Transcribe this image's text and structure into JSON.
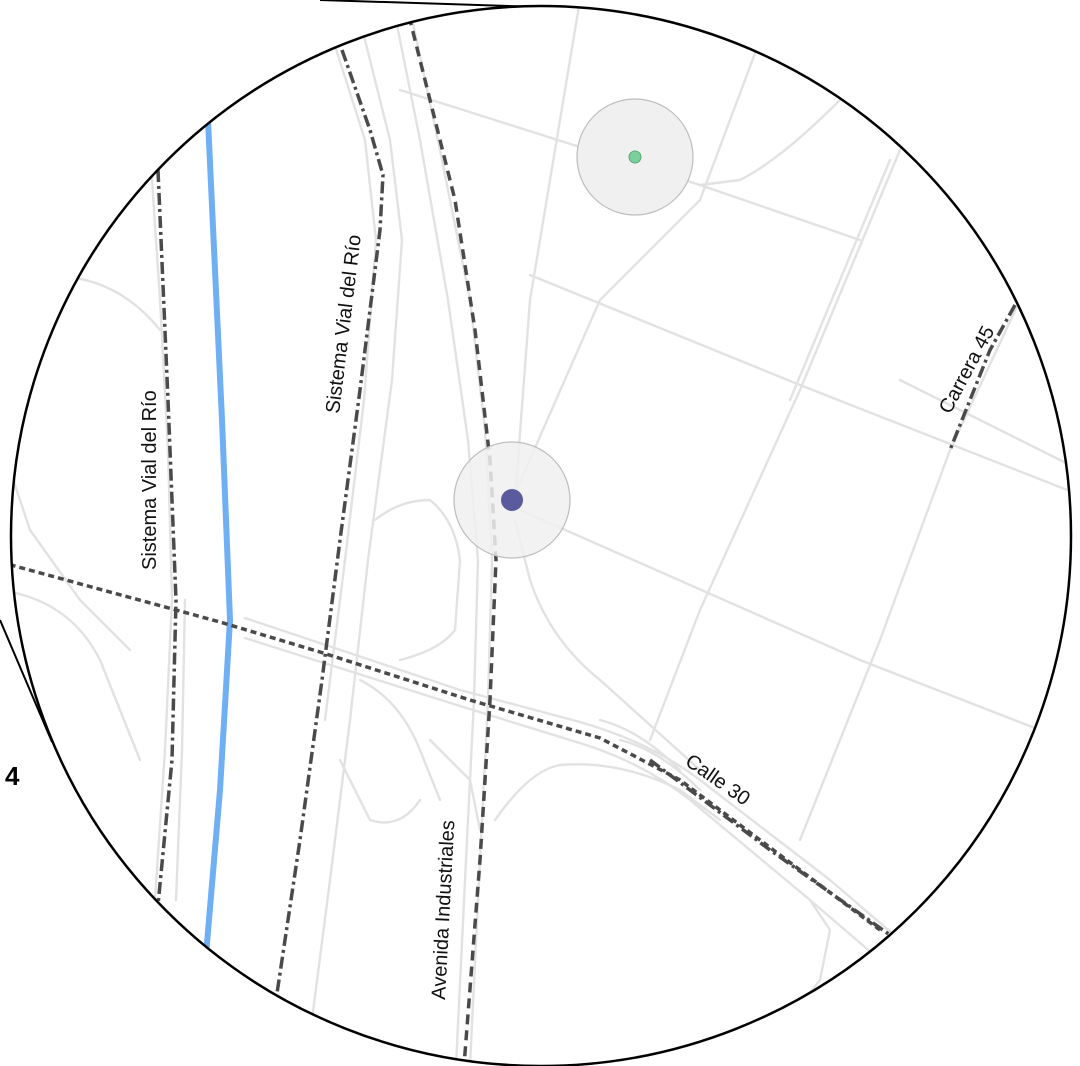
{
  "panel": {
    "number": "4"
  },
  "street_labels": {
    "sistema_vial_left": "Sistema Vial del Río",
    "sistema_vial_right": "Sistema Vial del Río",
    "carrera_45": "Carrera 45",
    "calle_30": "Calle 30",
    "avenida_industriales": "Avenida Industriales"
  },
  "colors": {
    "background": "#ffffff",
    "road": "#e2e2e2",
    "route_dash": "#4a4a4a",
    "river": "#6fb0f5",
    "outline": "#000000",
    "marker_primary": "#5a5a9c",
    "marker_secondary": "#7ccf9a",
    "marker_halo": "#f0f0f0"
  },
  "markers": [
    {
      "name": "primary-location",
      "color": "#5a5a9c"
    },
    {
      "name": "secondary-location",
      "color": "#7ccf9a"
    }
  ]
}
